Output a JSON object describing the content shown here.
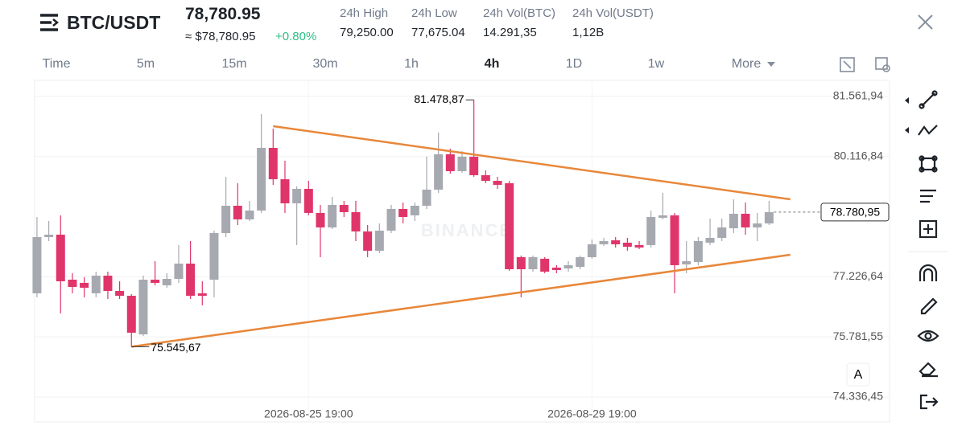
{
  "header": {
    "symbol": "BTC/USDT",
    "price": "78,780.95",
    "price_usd": "≈ $78,780.95",
    "change": "+0.80%",
    "stats": [
      {
        "label": "24h High",
        "value": "79,250.00"
      },
      {
        "label": "24h Low",
        "value": "77,675.04"
      },
      {
        "label": "24h Vol(BTC)",
        "value": "14.291,35"
      },
      {
        "label": "24h Vol(USDT)",
        "value": "1,12B"
      }
    ]
  },
  "intervals": [
    "Time",
    "5m",
    "15m",
    "30m",
    "1h",
    "4h",
    "1D",
    "1w",
    "More"
  ],
  "active_interval_index": 5,
  "scale_button": "A",
  "chart_data": {
    "type": "candlestick",
    "watermark": "BINANCE",
    "up_color": "#a6a9b0",
    "down_color": "#e0356a",
    "open": [
      76829,
      78181,
      78239,
      77157,
      77080,
      76829,
      77254,
      76886,
      76770,
      75843,
      77157,
      77021,
      77176,
      77543,
      76829,
      77157,
      78278,
      78934,
      78606,
      78819,
      80325,
      79572,
      78992,
      79340,
      78761,
      78413,
      78954,
      78780,
      78316,
      77853,
      78336,
      78857,
      78703,
      78934,
      79321,
      80171,
      79765,
      80113,
      79669,
      79533,
      79475,
      77698,
      77408,
      77660,
      77447,
      77427,
      77466,
      77698,
      78007,
      78104,
      78046,
      77988,
      77988,
      78645,
      78703,
      77524,
      77582,
      78046,
      78162,
      78393,
      78741,
      78413,
      78509
    ],
    "high": [
      78664,
      78567,
      78703,
      77312,
      77215,
      77350,
      77350,
      77118,
      76809,
      77254,
      77601,
      77312,
      77988,
      78084,
      77118,
      78336,
      79630,
      79475,
      79050,
      81137,
      80789,
      80016,
      79398,
      79533,
      78954,
      79147,
      79050,
      79050,
      78471,
      78509,
      78954,
      79012,
      79012,
      80113,
      80693,
      80306,
      80248,
      81478.87,
      79785,
      79630,
      79533,
      77737,
      77737,
      77698,
      77505,
      77601,
      77737,
      78123,
      78162,
      78181,
      78162,
      78084,
      78819,
      79244,
      78761,
      78084,
      78181,
      78625,
      78625,
      79089,
      79012,
      78761,
      79050
    ],
    "low": [
      76732,
      78084,
      76346,
      76829,
      76732,
      76732,
      76693,
      76693,
      75545.67,
      75805,
      77021,
      76963,
      77080,
      76693,
      76539,
      76732,
      78181,
      78471,
      78567,
      78761,
      79437,
      78761,
      77988,
      78703,
      77698,
      78374,
      78664,
      78084,
      77698,
      77795,
      78278,
      78509,
      78567,
      78857,
      79244,
      79707,
      79727,
      79630,
      79475,
      79340,
      77369,
      76732,
      77350,
      77312,
      77312,
      77350,
      77408,
      77660,
      77969,
      77930,
      77853,
      77891,
      77930,
      78606,
      76829,
      77312,
      77505,
      77988,
      78084,
      78278,
      78239,
      78084,
      78471
    ],
    "close": [
      78181,
      78239,
      77118,
      76983,
      76963,
      77254,
      76886,
      76770,
      75882,
      77157,
      77080,
      77176,
      77543,
      76770,
      76770,
      78278,
      78934,
      78606,
      78819,
      80325,
      79572,
      78992,
      79340,
      78761,
      78413,
      78954,
      78780,
      78316,
      77853,
      78336,
      78857,
      78664,
      78934,
      79321,
      80171,
      79765,
      80113,
      79669,
      79533,
      79437,
      77408,
      77408,
      77698,
      77350,
      77389,
      77505,
      77698,
      78007,
      78084,
      78007,
      77949,
      77930,
      78664,
      78703,
      77505,
      77601,
      78084,
      78162,
      78413,
      78741,
      78413,
      78509,
      78780.95
    ],
    "xlim": [
      -0.2,
      72.2
    ],
    "ylim": [
      73737,
      81948
    ],
    "yticks": [
      {
        "value": 81561.94,
        "label": "81.561,94"
      },
      {
        "value": 80116.84,
        "label": "80.116,84"
      },
      {
        "value": 77226.64,
        "label": "77.226,64"
      },
      {
        "value": 75781.55,
        "label": "75.781,55"
      },
      {
        "value": 74336.45,
        "label": "74.336,45"
      }
    ],
    "xticks": [
      {
        "value": 23,
        "label": "2026-08-25 19:00"
      },
      {
        "value": 47,
        "label": "2026-08-29 19:00"
      }
    ],
    "grid": true,
    "last_price": {
      "value": 78780.95,
      "label": "78.780,95"
    },
    "high_marker": {
      "index": 37,
      "value": 81478.87,
      "label": "81.478,87"
    },
    "low_marker": {
      "index": 8,
      "value": 75545.67,
      "label": "75.545,67"
    },
    "trendline_color": "#e8873a",
    "trendlines": [
      {
        "x": [
          20,
          63.8
        ],
        "y": [
          80847,
          79089
        ]
      },
      {
        "x": [
          8,
          63.8
        ],
        "y": [
          75545.67,
          77756
        ]
      }
    ]
  }
}
